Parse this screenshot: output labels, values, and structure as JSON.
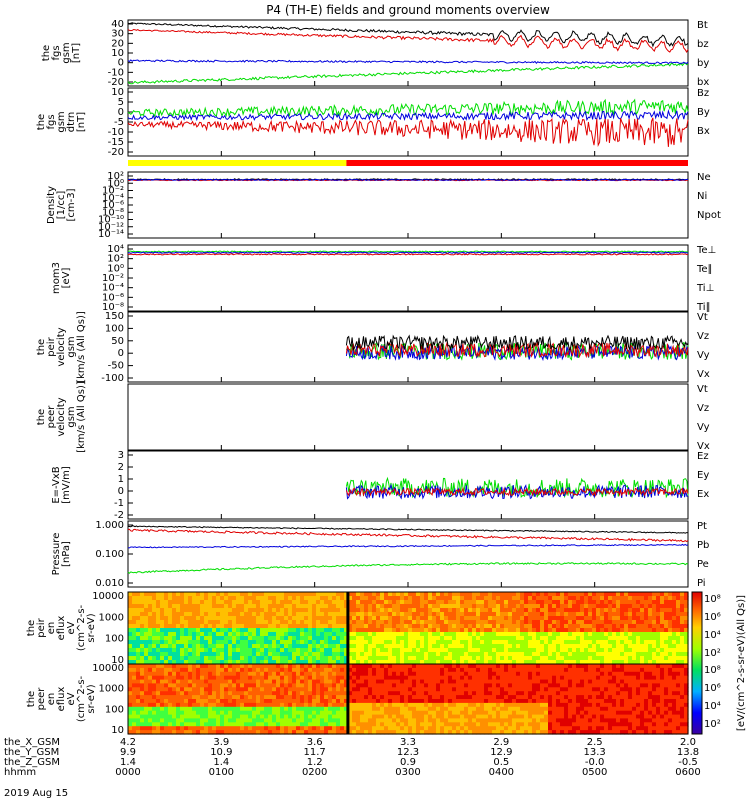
{
  "title": "P4 (TH-E) fields and ground moments overview",
  "date_label": "2019 Aug 15",
  "colors": {
    "black": "#000000",
    "red": "#e00000",
    "green": "#00dd00",
    "blue": "#0000dd",
    "yellow": "#ffff00"
  },
  "panels": [
    {
      "ylabel": [
        "the",
        "fgs",
        "gsm",
        "[nT]"
      ],
      "legend": [
        "Bt",
        "bz",
        "by",
        "bx"
      ],
      "legend_colors": [
        "#000",
        "#e00000",
        "#00dd00",
        "#0000dd"
      ],
      "ticks": [
        "40",
        "30",
        "20",
        "10",
        "0",
        "-10",
        "-20"
      ]
    },
    {
      "ylabel": [
        "the",
        "fgs",
        "gsm",
        "dtrn",
        "[nT]"
      ],
      "legend": [
        "Bz",
        "By",
        "Bx"
      ],
      "legend_colors": [
        "#e00000",
        "#00dd00",
        "#0000dd"
      ],
      "ticks": [
        "10",
        "5",
        "0",
        "-5",
        "-10",
        "-15",
        "-20"
      ]
    },
    {
      "ylabel": [
        "Density",
        "[1/cc]",
        "[cm-3]"
      ],
      "legend": [
        "Ne",
        "Ni",
        "Npot"
      ],
      "legend_colors": [
        "#e00000",
        "#000",
        "#0000dd"
      ],
      "ticks": [
        "10²",
        "10⁰",
        "10⁻²",
        "10⁻⁴",
        "10⁻⁶",
        "10⁻⁸",
        "10⁻¹⁰",
        "10⁻¹²",
        "10⁻¹⁴"
      ]
    },
    {
      "ylabel": [
        "mom3",
        "[eV]"
      ],
      "legend": [
        "Te⊥",
        "Te∥",
        "Ti⊥",
        "Ti∥"
      ],
      "legend_colors": [
        "#e00000",
        "#000",
        "#00dd00",
        "#00dd00"
      ],
      "ticks": [
        "10⁴",
        "10²",
        "10⁰",
        "10⁻²",
        "10⁻⁴",
        "10⁻⁶",
        "10⁻⁸"
      ]
    },
    {
      "ylabel": [
        "the",
        "peir",
        "velocity",
        "gsm",
        "[km/s (All Qs)]"
      ],
      "legend": [
        "Vt",
        "Vz",
        "Vy",
        "Vx"
      ],
      "legend_colors": [
        "#000",
        "#e00000",
        "#00dd00",
        "#0000dd"
      ],
      "ticks": [
        "150",
        "100",
        "50",
        "0",
        "-50",
        "-100"
      ]
    },
    {
      "ylabel": [
        "the",
        "peer",
        "velocity",
        "gsm",
        "[km/s (All Qs)]"
      ],
      "legend": [
        "Vt",
        "Vz",
        "Vy",
        "Vx"
      ],
      "legend_colors": [
        "#000",
        "#e00000",
        "#00dd00",
        "#0000dd"
      ],
      "ticks": []
    },
    {
      "ylabel": [
        "E=-VxB",
        "[mV/m]"
      ],
      "legend": [
        "Ez",
        "Ey",
        "Ex"
      ],
      "legend_colors": [
        "#e00000",
        "#00dd00",
        "#0000dd"
      ],
      "ticks": [
        "3",
        "2",
        "1",
        "0",
        "-1",
        "-2"
      ]
    },
    {
      "ylabel": [
        "Pressure",
        "[nPa]"
      ],
      "legend": [
        "Pt",
        "Pb",
        "Pe",
        "Pi"
      ],
      "legend_colors": [
        "#000",
        "#e00000",
        "#00dd00",
        "#0000dd"
      ],
      "ticks": [
        "1.000",
        "0.100",
        "0.010"
      ]
    },
    {
      "ylabel": [
        "the",
        "peir",
        "en",
        "eflux",
        "eV",
        "(cm^2-s-",
        "sr-eV)"
      ],
      "legend": [],
      "legend_colors": [],
      "ticks": [
        "10000",
        "1000",
        "100",
        "10"
      ]
    },
    {
      "ylabel": [
        "the",
        "peer",
        "en",
        "eflux",
        "eV",
        "(cm^2-s-",
        "sr-eV)"
      ],
      "legend": [],
      "legend_colors": [],
      "ticks": [
        "10000",
        "1000",
        "100",
        "10"
      ]
    }
  ],
  "colorbar": {
    "label": "[eV/(cm^2-s-sr-eV)(All Qs)]",
    "ticks": [
      "10⁸",
      "10⁶",
      "10⁴",
      "10²"
    ]
  },
  "xaxis": {
    "row_labels": [
      "the_X_GSM",
      "the_Y_GSM",
      "the_Z_GSM",
      "hhmm"
    ],
    "columns": [
      [
        "4.2",
        "9.9",
        "1.4",
        "0000"
      ],
      [
        "3.9",
        "10.9",
        "1.4",
        "0100"
      ],
      [
        "3.6",
        "11.7",
        "1.2",
        "0200"
      ],
      [
        "3.3",
        "12.3",
        "0.9",
        "0300"
      ],
      [
        "2.9",
        "12.9",
        "0.5",
        "0400"
      ],
      [
        "2.5",
        "13.3",
        "-0.0",
        "0500"
      ],
      [
        "2.0",
        "13.8",
        "-0.5",
        "0600"
      ]
    ]
  },
  "chart_data": [
    {
      "type": "line",
      "title": "the fgs gsm",
      "xlabel": "hhmm",
      "x_range": [
        "0000",
        "0600"
      ],
      "ylim": [
        -20,
        40
      ],
      "series": [
        {
          "name": "Bt"
        },
        {
          "name": "bz"
        },
        {
          "name": "by"
        },
        {
          "name": "bx"
        }
      ],
      "approx": {
        "Bt": [
          37,
          33,
          29,
          22
        ],
        "bz": [
          32,
          29,
          27,
          18
        ],
        "by": [
          3,
          2,
          1,
          0
        ],
        "bx": [
          -17,
          -10,
          -5,
          0
        ]
      }
    },
    {
      "type": "line",
      "title": "the fgs gsm dtrn",
      "ylim": [
        -20,
        10
      ],
      "series": [
        {
          "name": "Bz"
        },
        {
          "name": "By"
        },
        {
          "name": "Bx"
        }
      ]
    },
    {
      "type": "line",
      "title": "Density",
      "scale": "log",
      "series": [
        {
          "name": "Ne"
        },
        {
          "name": "Ni"
        },
        {
          "name": "Npot"
        }
      ],
      "approx_value": 1
    },
    {
      "type": "line",
      "title": "mom3",
      "scale": "log",
      "series": [
        {
          "name": "Te⊥"
        },
        {
          "name": "Te∥"
        },
        {
          "name": "Ti⊥"
        },
        {
          "name": "Ti∥"
        }
      ],
      "approx_value": 300
    },
    {
      "type": "line",
      "title": "the peir velocity gsm",
      "ylim": [
        -100,
        150
      ],
      "series": [
        {
          "name": "Vt"
        },
        {
          "name": "Vz"
        },
        {
          "name": "Vy"
        },
        {
          "name": "Vx"
        }
      ],
      "data_start": "0230"
    },
    {
      "type": "line",
      "title": "the peer velocity gsm",
      "series": [
        {
          "name": "Vt"
        },
        {
          "name": "Vz"
        },
        {
          "name": "Vy"
        },
        {
          "name": "Vx"
        }
      ]
    },
    {
      "type": "line",
      "title": "E=-VxB",
      "ylim": [
        -2,
        3
      ],
      "series": [
        {
          "name": "Ez"
        },
        {
          "name": "Ey"
        },
        {
          "name": "Ex"
        }
      ],
      "data_start": "0230"
    },
    {
      "type": "line",
      "title": "Pressure",
      "scale": "log",
      "ylim": [
        0.005,
        1.5
      ],
      "series": [
        {
          "name": "Pt"
        },
        {
          "name": "Pb"
        },
        {
          "name": "Pe"
        },
        {
          "name": "Pi"
        }
      ]
    },
    {
      "type": "heatmap",
      "title": "the peir en eflux",
      "scale": "log",
      "ylim": [
        5,
        30000
      ]
    },
    {
      "type": "heatmap",
      "title": "the peer en eflux",
      "scale": "log",
      "ylim": [
        5,
        30000
      ]
    }
  ]
}
